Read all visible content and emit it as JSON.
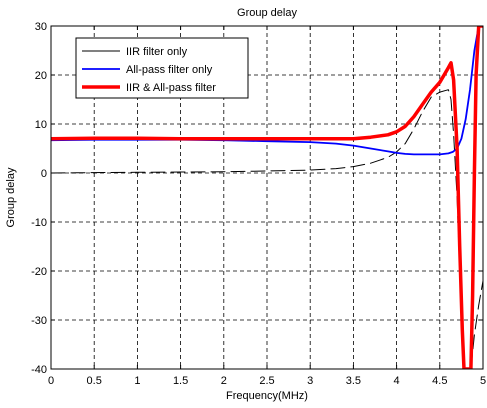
{
  "chart_data": {
    "type": "line",
    "title": "Group delay",
    "xlabel": "Frequency(MHz)",
    "ylabel": "Group delay",
    "xlim": [
      0,
      5
    ],
    "ylim": [
      -40,
      30
    ],
    "xticks": [
      0,
      0.5,
      1,
      1.5,
      2,
      2.5,
      3,
      3.5,
      4,
      4.5,
      5
    ],
    "yticks": [
      -40,
      -30,
      -20,
      -10,
      0,
      10,
      20,
      30
    ],
    "xtick_labels": [
      "0",
      "0.5",
      "1",
      "1.5",
      "2",
      "2.5",
      "3",
      "3.5",
      "4",
      "4.5",
      "5"
    ],
    "ytick_labels": [
      "-40",
      "-30",
      "-20",
      "-10",
      "0",
      "10",
      "20",
      "30"
    ],
    "grid": true,
    "legend_position": "top-left",
    "series": [
      {
        "name": "IIR filter only",
        "color": "#000000",
        "line_style": "thin-dashed",
        "x": [
          0,
          0.3,
          0.6,
          1.0,
          1.5,
          2.0,
          2.5,
          3.0,
          3.3,
          3.5,
          3.7,
          3.9,
          4.0,
          4.1,
          4.2,
          4.3,
          4.4,
          4.5,
          4.6,
          4.63,
          4.66,
          4.7,
          4.74,
          4.78,
          4.8,
          4.82,
          4.84,
          4.86,
          4.9,
          4.95,
          5.0
        ],
        "y": [
          0,
          0.05,
          0.1,
          0.15,
          0.2,
          0.25,
          0.4,
          0.6,
          0.9,
          1.3,
          2.0,
          3.2,
          4.3,
          6.0,
          9.0,
          12.5,
          15.5,
          16.5,
          17.0,
          15.0,
          8.0,
          -5.0,
          -25.0,
          -40.0,
          -40.0,
          -40.0,
          -40.0,
          -40.0,
          -33.0,
          -27.0,
          -22.0
        ]
      },
      {
        "name": "All-pass filter only",
        "color": "#0000ff",
        "line_style": "solid",
        "x": [
          0,
          0.5,
          1.0,
          1.5,
          2.0,
          2.5,
          3.0,
          3.3,
          3.5,
          3.7,
          3.9,
          4.0,
          4.1,
          4.2,
          4.3,
          4.4,
          4.5,
          4.6,
          4.65,
          4.7,
          4.75,
          4.8,
          4.85,
          4.9,
          4.95,
          5.0
        ],
        "y": [
          6.7,
          6.8,
          6.8,
          6.8,
          6.7,
          6.5,
          6.3,
          6.0,
          5.6,
          5.0,
          4.4,
          4.1,
          3.9,
          3.8,
          3.8,
          3.8,
          3.8,
          4.0,
          4.3,
          5.0,
          7.0,
          11.0,
          17.0,
          25.0,
          30.0,
          30.0
        ]
      },
      {
        "name": "IIR & All-pass filter",
        "color": "#ff0000",
        "line_style": "thick-solid",
        "x": [
          0,
          0.5,
          1.0,
          1.5,
          2.0,
          2.5,
          3.0,
          3.5,
          3.7,
          3.9,
          4.0,
          4.1,
          4.2,
          4.3,
          4.4,
          4.5,
          4.55,
          4.6,
          4.63,
          4.66,
          4.7,
          4.73,
          4.76,
          4.78,
          4.8,
          4.82,
          4.84,
          4.86,
          4.88,
          4.9,
          4.92,
          4.95,
          4.97,
          5.0
        ],
        "y": [
          7.0,
          7.1,
          7.1,
          7.0,
          7.0,
          7.0,
          7.0,
          7.0,
          7.3,
          7.8,
          8.4,
          9.5,
          11.5,
          14.0,
          16.5,
          18.5,
          20.0,
          21.5,
          22.5,
          19.0,
          5.0,
          -15.0,
          -32.0,
          -40.0,
          -40.0,
          -40.0,
          -40.0,
          -40.0,
          -25.0,
          0.0,
          20.0,
          30.0,
          30.0,
          30.0
        ]
      }
    ]
  }
}
